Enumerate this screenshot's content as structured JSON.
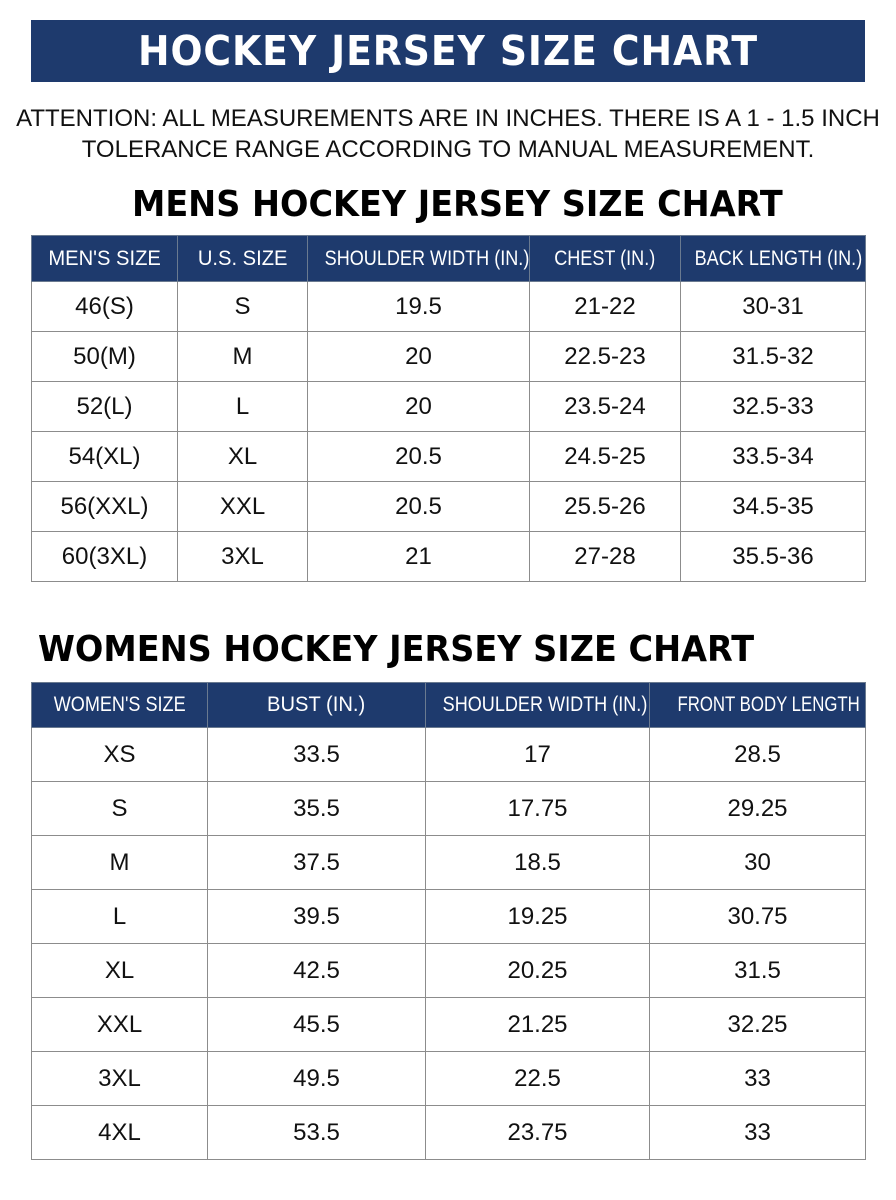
{
  "header": {
    "title": "HOCKEY JERSEY SIZE CHART"
  },
  "notice": {
    "line1": "ATTENTION: ALL MEASUREMENTS ARE IN INCHES. THERE IS A 1 - 1.5 INCH",
    "line2": "TOLERANCE RANGE ACCORDING TO MANUAL MEASUREMENT."
  },
  "colors": {
    "header_background": "#1e3a6d",
    "header_text": "#ffffff",
    "table_border": "#8c8c8c"
  },
  "mens": {
    "title": "MENS HOCKEY JERSEY SIZE CHART",
    "columns": [
      "MEN'S SIZE",
      "U.S. SIZE",
      "SHOULDER WIDTH (IN.)",
      "CHEST (IN.)",
      "BACK LENGTH (IN.)"
    ],
    "rows": [
      [
        "46(S)",
        "S",
        "19.5",
        "21-22",
        "30-31"
      ],
      [
        "50(M)",
        "M",
        "20",
        "22.5-23",
        "31.5-32"
      ],
      [
        "52(L)",
        "L",
        "20",
        "23.5-24",
        "32.5-33"
      ],
      [
        "54(XL)",
        "XL",
        "20.5",
        "24.5-25",
        "33.5-34"
      ],
      [
        "56(XXL)",
        "XXL",
        "20.5",
        "25.5-26",
        "34.5-35"
      ],
      [
        "60(3XL)",
        "3XL",
        "21",
        "27-28",
        "35.5-36"
      ]
    ]
  },
  "womens": {
    "title": "WOMENS HOCKEY JERSEY SIZE CHART",
    "columns": [
      "WOMEN'S SIZE",
      "BUST (IN.)",
      "SHOULDER WIDTH (IN.)",
      "FRONT BODY LENGTH (IN.)"
    ],
    "rows": [
      [
        "XS",
        "33.5",
        "17",
        "28.5"
      ],
      [
        "S",
        "35.5",
        "17.75",
        "29.25"
      ],
      [
        "M",
        "37.5",
        "18.5",
        "30"
      ],
      [
        "L",
        "39.5",
        "19.25",
        "30.75"
      ],
      [
        "XL",
        "42.5",
        "20.25",
        "31.5"
      ],
      [
        "XXL",
        "45.5",
        "21.25",
        "32.25"
      ],
      [
        "3XL",
        "49.5",
        "22.5",
        "33"
      ],
      [
        "4XL",
        "53.5",
        "23.75",
        "33"
      ]
    ]
  }
}
